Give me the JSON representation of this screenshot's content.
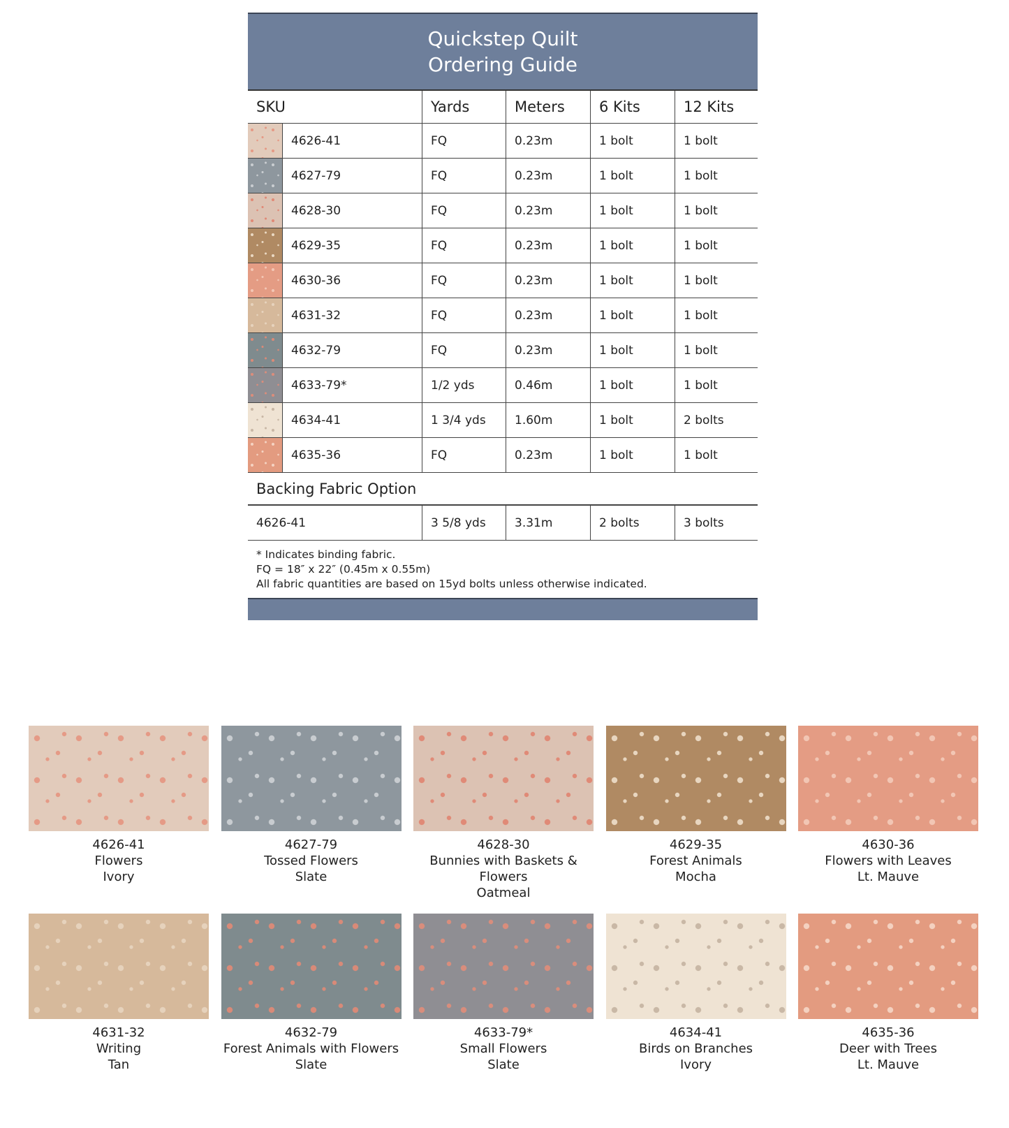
{
  "title_line1": "Quickstep Quilt",
  "title_line2": "Ordering Guide",
  "columns": [
    "SKU",
    "Yards",
    "Meters",
    "6 Kits",
    "12 Kits"
  ],
  "rows": [
    {
      "sku": "4626-41",
      "yards": "FQ",
      "meters": "0.23m",
      "kits6": "1 bolt",
      "kits12": "1 bolt",
      "color": "#e2cbbb",
      "accent": "#e59a86"
    },
    {
      "sku": "4627-79",
      "yards": "FQ",
      "meters": "0.23m",
      "kits6": "1 bolt",
      "kits12": "1 bolt",
      "color": "#8e979e",
      "accent": "#c8ccd0"
    },
    {
      "sku": "4628-30",
      "yards": "FQ",
      "meters": "0.23m",
      "kits6": "1 bolt",
      "kits12": "1 bolt",
      "color": "#dcc2b3",
      "accent": "#e08a77"
    },
    {
      "sku": "4629-35",
      "yards": "FQ",
      "meters": "0.23m",
      "kits6": "1 bolt",
      "kits12": "1 bolt",
      "color": "#b08a63",
      "accent": "#e8d6c0"
    },
    {
      "sku": "4630-36",
      "yards": "FQ",
      "meters": "0.23m",
      "kits6": "1 bolt",
      "kits12": "1 bolt",
      "color": "#e49c84",
      "accent": "#f2c6b4"
    },
    {
      "sku": "4631-32",
      "yards": "FQ",
      "meters": "0.23m",
      "kits6": "1 bolt",
      "kits12": "1 bolt",
      "color": "#d6b99b",
      "accent": "#e6d2bc"
    },
    {
      "sku": "4632-79",
      "yards": "FQ",
      "meters": "0.23m",
      "kits6": "1 bolt",
      "kits12": "1 bolt",
      "color": "#7f8b8e",
      "accent": "#d88a78"
    },
    {
      "sku": "4633-79*",
      "yards": "1/2 yds",
      "meters": "0.46m",
      "kits6": "1 bolt",
      "kits12": "1 bolt",
      "color": "#8f8e93",
      "accent": "#d98d7c"
    },
    {
      "sku": "4634-41",
      "yards": "1 3/4 yds",
      "meters": "1.60m",
      "kits6": "1 bolt",
      "kits12": "2 bolts",
      "color": "#efe3d3",
      "accent": "#c9b8a6"
    },
    {
      "sku": "4635-36",
      "yards": "FQ",
      "meters": "0.23m",
      "kits6": "1 bolt",
      "kits12": "1 bolt",
      "color": "#e39b80",
      "accent": "#f4d1c0"
    }
  ],
  "backing": {
    "label": "Backing Fabric Option",
    "sku": "4626-41",
    "yards": "3 5/8 yds",
    "meters": "3.31m",
    "kits6": "2 bolts",
    "kits12": "3 bolts"
  },
  "notes": [
    "* Indicates binding fabric.",
    "FQ = 18″ x 22″ (0.45m x 0.55m)",
    "All fabric quantities are based on 15yd bolts unless otherwise indicated."
  ],
  "fabrics": [
    {
      "sku": "4626-41",
      "name": "Flowers",
      "color_name": "Ivory"
    },
    {
      "sku": "4627-79",
      "name": "Tossed Flowers",
      "color_name": "Slate"
    },
    {
      "sku": "4628-30",
      "name": "Bunnies with Baskets & Flowers",
      "color_name": "Oatmeal"
    },
    {
      "sku": "4629-35",
      "name": "Forest Animals",
      "color_name": "Mocha"
    },
    {
      "sku": "4630-36",
      "name": "Flowers with Leaves",
      "color_name": "Lt. Mauve"
    },
    {
      "sku": "4631-32",
      "name": "Writing",
      "color_name": "Tan"
    },
    {
      "sku": "4632-79",
      "name": "Forest Animals with Flowers",
      "color_name": "Slate"
    },
    {
      "sku": "4633-79*",
      "name": "Small Flowers",
      "color_name": "Slate"
    },
    {
      "sku": "4634-41",
      "name": "Birds on Branches",
      "color_name": "Ivory"
    },
    {
      "sku": "4635-36",
      "name": "Deer with Trees",
      "color_name": "Lt. Mauve"
    }
  ]
}
